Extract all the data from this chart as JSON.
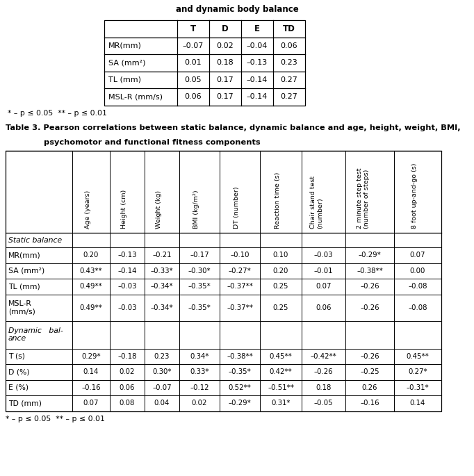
{
  "title_top": "and dynamic body balance",
  "title3": "Table 3. Pearson correlations between static balance, dynamic balance and age, height, weight, BMI,",
  "title3b": "psychomotor and functional fitness components",
  "small_table_headers": [
    "",
    "T",
    "D",
    "E",
    "TD"
  ],
  "small_table_rows": [
    [
      "MR(mm)",
      "–0.07",
      "0.02",
      "–0.04",
      "0.06"
    ],
    [
      "SA (mm²)",
      "0.01",
      "0.18",
      "–0.13",
      "0.23"
    ],
    [
      "TL (mm)",
      "0.05",
      "0.17",
      "–0.14",
      "0.27"
    ],
    [
      "MSL-R (mm/s)",
      "0.06",
      "0.17",
      "–0.14",
      "0.27"
    ]
  ],
  "footnote1": "* – p ≤ 0.05  ** – p ≤ 0.01",
  "col_headers": [
    "Age (years)",
    "Height (cm)",
    "Weight (kg)",
    "BMI (kg/m²)",
    "DT (number)",
    "Reaction time (s)",
    "Chair stand test\n(number)",
    "2 minute step test\n(number of steps)",
    "8 foot up-and-go (s)"
  ],
  "row_labels": [
    "Static balance",
    "MR(mm)",
    "SA (mm²)",
    "TL (mm)",
    "MSL-R\n(mm/s)",
    "Dynamic   bal-\nance",
    "T (s)",
    "D (%)",
    "E (%)",
    "TD (mm)"
  ],
  "data_rows": [
    [
      null,
      null,
      null,
      null,
      null,
      null,
      null,
      null,
      null
    ],
    [
      "0.20",
      "–0.13",
      "–0.21",
      "–0.17",
      "–0.10",
      "0.10",
      "–0.03",
      "–0.29*",
      "0.07"
    ],
    [
      "0.43**",
      "–0.14",
      "–0.33*",
      "–0.30*",
      "–0.27*",
      "0.20",
      "–0.01",
      "–0.38**",
      "0.00"
    ],
    [
      "0.49**",
      "–0.03",
      "–0.34*",
      "–0.35*",
      "–0.37**",
      "0.25",
      "0.07",
      "–0.26",
      "–0.08"
    ],
    [
      "0.49**",
      "–0.03",
      "–0.34*",
      "–0.35*",
      "–0.37**",
      "0.25",
      "0.06",
      "–0.26",
      "–0.08"
    ],
    [
      null,
      null,
      null,
      null,
      null,
      null,
      null,
      null,
      null
    ],
    [
      "0.29*",
      "–0.18",
      "0.23",
      "0.34*",
      "–0.38**",
      "0.45**",
      "–0.42**",
      "–0.26",
      "0.45**"
    ],
    [
      "0.14",
      "0.02",
      "0.30*",
      "0.33*",
      "–0.35*",
      "0.42**",
      "–0.26",
      "–0.25",
      "0.27*"
    ],
    [
      "–0.16",
      "0.06",
      "–0.07",
      "–0.12",
      "0.52**",
      "–0.51**",
      "0.18",
      "0.26",
      "–0.31*"
    ],
    [
      "0.07",
      "0.08",
      "0.04",
      "0.02",
      "–0.29*",
      "0.31*",
      "–0.05",
      "–0.16",
      "0.14"
    ]
  ],
  "footnote2": "* – p ≤ 0.05  ** – p ≤ 0.01"
}
